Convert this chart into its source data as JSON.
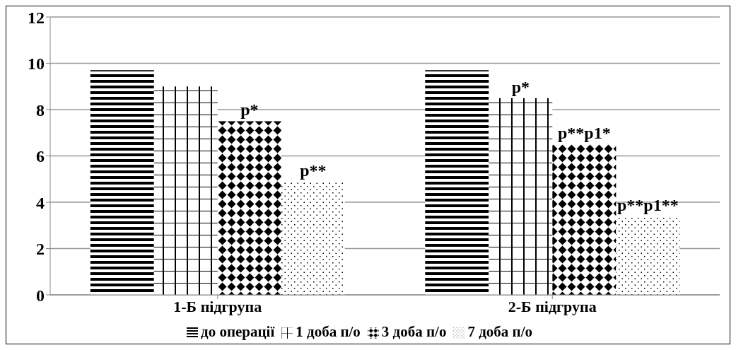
{
  "chart_data": {
    "type": "bar",
    "categories": [
      "1-Б підгрупа",
      "2-Б підгрупа"
    ],
    "series": [
      {
        "name": "до операції",
        "color": "#000000",
        "values": [
          9.7,
          9.7
        ]
      },
      {
        "name": "1 доба п/о",
        "color": "#000000",
        "values": [
          9.0,
          8.5
        ]
      },
      {
        "name": "3 доба п/о",
        "color": "#000000",
        "values": [
          7.5,
          6.5
        ]
      },
      {
        "name": "7 доба п/о",
        "color": "#000000",
        "values": [
          4.9,
          3.4
        ]
      }
    ],
    "ylim": [
      0,
      12
    ],
    "yticks": [
      0,
      2,
      4,
      6,
      8,
      10,
      12
    ],
    "grid": "y",
    "legend": "bottom",
    "annotations": [
      "p*",
      "p**",
      "p*",
      "p**p1*",
      "p**p1**"
    ]
  }
}
